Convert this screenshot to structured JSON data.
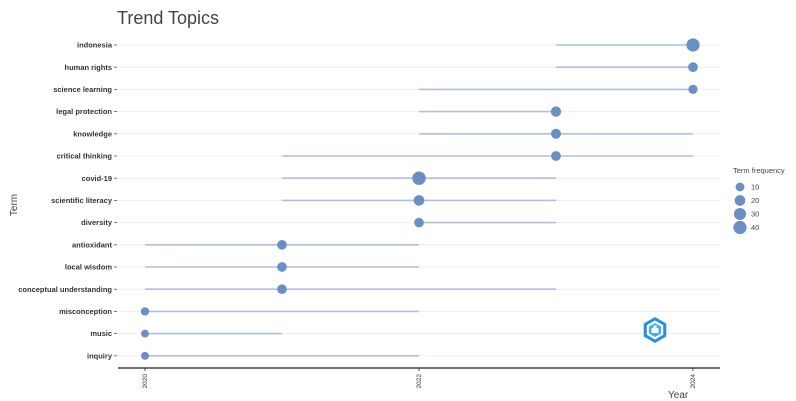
{
  "chart_data": {
    "type": "scatter",
    "title": "Trend Topics",
    "xlabel": "Year",
    "ylabel": "Term",
    "xlim": [
      2020,
      2024
    ],
    "x_ticks": [
      "2020",
      "2022",
      "2024"
    ],
    "grid": true,
    "legend": {
      "title": "Term frequency",
      "placement": "right",
      "entries": [
        {
          "label": "10",
          "freq": 10
        },
        {
          "label": "20",
          "freq": 20
        },
        {
          "label": "30",
          "freq": 30
        },
        {
          "label": "40",
          "freq": 40
        }
      ]
    },
    "terms": [
      {
        "term": "indonesia",
        "start": 2023,
        "peak": 2024,
        "end": 2024,
        "freq": 40
      },
      {
        "term": "human rights",
        "start": 2023,
        "peak": 2024,
        "end": 2024,
        "freq": 15
      },
      {
        "term": "science learning",
        "start": 2022,
        "peak": 2024,
        "end": 2024,
        "freq": 12
      },
      {
        "term": "legal protection",
        "start": 2022,
        "peak": 2023,
        "end": 2023,
        "freq": 18
      },
      {
        "term": "knowledge",
        "start": 2022,
        "peak": 2023,
        "end": 2024,
        "freq": 16
      },
      {
        "term": "critical thinking",
        "start": 2021,
        "peak": 2023,
        "end": 2024,
        "freq": 15
      },
      {
        "term": "covid-19",
        "start": 2021,
        "peak": 2022,
        "end": 2023,
        "freq": 42
      },
      {
        "term": "scientific literacy",
        "start": 2021,
        "peak": 2022,
        "end": 2023,
        "freq": 20
      },
      {
        "term": "diversity",
        "start": 2022,
        "peak": 2022,
        "end": 2023,
        "freq": 14
      },
      {
        "term": "antioxidant",
        "start": 2020,
        "peak": 2021,
        "end": 2022,
        "freq": 14
      },
      {
        "term": "local wisdom",
        "start": 2020,
        "peak": 2021,
        "end": 2022,
        "freq": 14
      },
      {
        "term": "conceptual understanding",
        "start": 2020,
        "peak": 2021,
        "end": 2023,
        "freq": 14
      },
      {
        "term": "misconception",
        "start": 2020,
        "peak": 2020,
        "end": 2022,
        "freq": 8
      },
      {
        "term": "music",
        "start": 2020,
        "peak": 2020,
        "end": 2021,
        "freq": 6
      },
      {
        "term": "inquiry",
        "start": 2020,
        "peak": 2020,
        "end": 2022,
        "freq": 6
      }
    ]
  },
  "colors": {
    "point": "#6a8fc0",
    "segment": "#b4bed9",
    "grid": "#eeeeee",
    "axis": "#222222"
  },
  "logo": {
    "icon": "bibliometrix-logo-icon"
  }
}
